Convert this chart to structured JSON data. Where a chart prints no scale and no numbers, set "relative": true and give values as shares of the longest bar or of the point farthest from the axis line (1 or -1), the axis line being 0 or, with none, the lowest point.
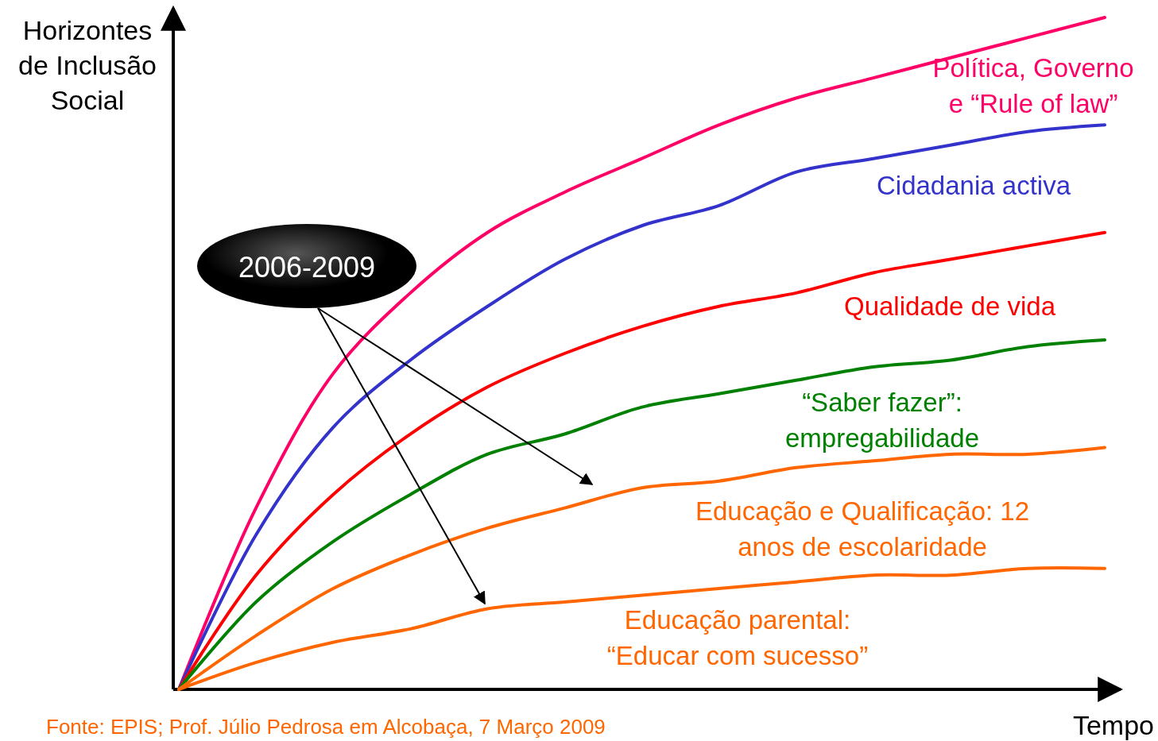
{
  "chart_data": {
    "type": "line",
    "relative": true,
    "ylabel": "Horizontes de Inclusão Social",
    "xlabel": "Tempo",
    "categories": [
      null,
      null,
      null,
      null,
      null,
      null,
      null,
      null,
      null,
      null,
      null,
      null,
      null
    ],
    "series": [
      {
        "name": "Política, Governo e “Rule of law”",
        "color": "#ff0066",
        "values": [
          0,
          0.27,
          0.47,
          0.59,
          0.68,
          0.74,
          0.79,
          0.84,
          0.88,
          0.91,
          0.94,
          0.97,
          1
        ]
      },
      {
        "name": "Cidadania activa",
        "color": "#3333cc",
        "values": [
          0,
          0.23,
          0.39,
          0.49,
          0.57,
          0.64,
          0.69,
          0.72,
          0.77,
          0.79,
          0.81,
          0.83,
          0.84
        ]
      },
      {
        "name": "Qualidade de vida",
        "color": "#ff0000",
        "values": [
          0,
          0.17,
          0.29,
          0.38,
          0.45,
          0.5,
          0.54,
          0.57,
          0.59,
          0.62,
          0.64,
          0.66,
          0.68
        ]
      },
      {
        "name": "“Saber fazer”: empregabilidade",
        "color": "#008000",
        "values": [
          0,
          0.13,
          0.22,
          0.29,
          0.35,
          0.38,
          0.42,
          0.44,
          0.46,
          0.48,
          0.49,
          0.51,
          0.52
        ]
      },
      {
        "name": "Educação e Qualificação: 12 anos de escolaridade",
        "color": "#ff6600",
        "values": [
          0,
          0.08,
          0.15,
          0.2,
          0.24,
          0.27,
          0.3,
          0.31,
          0.33,
          0.34,
          0.35,
          0.35,
          0.36
        ]
      },
      {
        "name": "Educação parental: “Educar com sucesso”",
        "color": "#ff6600",
        "values": [
          0,
          0.04,
          0.07,
          0.09,
          0.12,
          0.13,
          0.14,
          0.15,
          0.16,
          0.17,
          0.17,
          0.18,
          0.18
        ]
      }
    ],
    "annotations": [
      "2006-2009",
      "Fonte: EPIS; Prof. Júlio Pedrosa em Alcobaça, 7 Março 2009"
    ]
  }
}
